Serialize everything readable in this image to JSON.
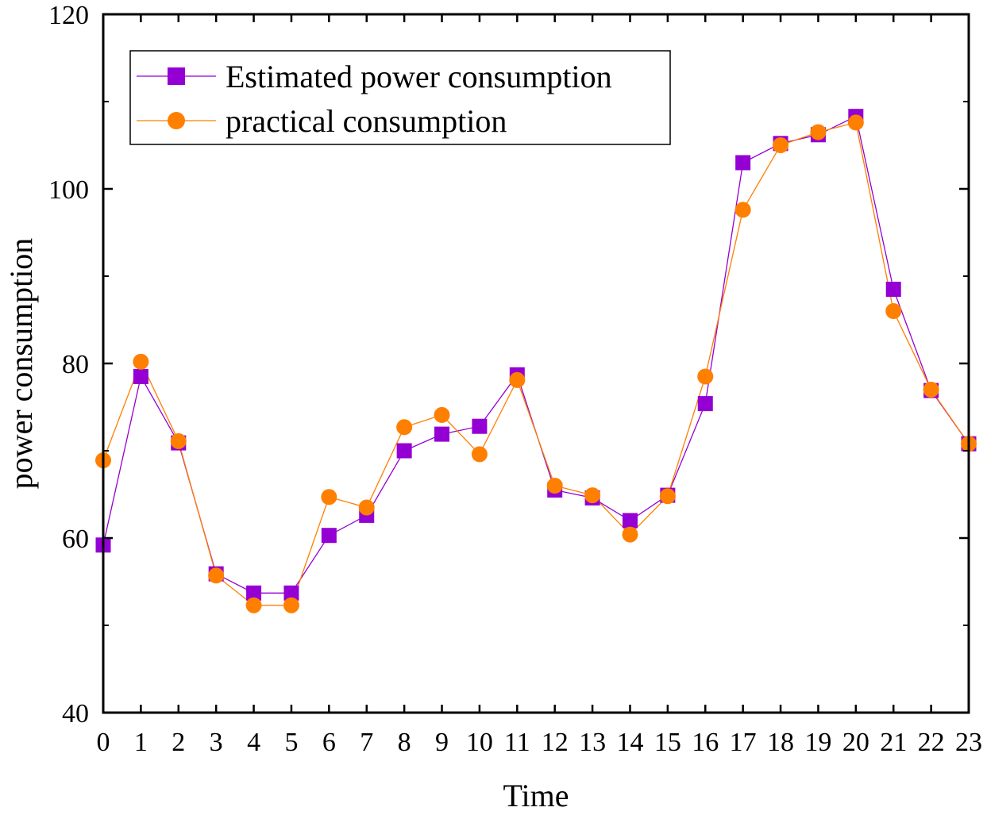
{
  "chart_data": {
    "type": "line",
    "title": "",
    "xlabel": "Time",
    "ylabel": "power consumption",
    "xlim": [
      0,
      23
    ],
    "ylim": [
      40,
      120
    ],
    "x": [
      0,
      1,
      2,
      3,
      4,
      5,
      6,
      7,
      8,
      9,
      10,
      11,
      12,
      13,
      14,
      15,
      16,
      17,
      18,
      19,
      20,
      21,
      22,
      23
    ],
    "x_ticks": [
      "0",
      "1",
      "2",
      "3",
      "4",
      "5",
      "6",
      "7",
      "8",
      "9",
      "10",
      "11",
      "12",
      "13",
      "14",
      "15",
      "16",
      "17",
      "18",
      "19",
      "20",
      "21",
      "22",
      "23"
    ],
    "y_ticks": [
      {
        "value": 40,
        "label": "40"
      },
      {
        "value": 60,
        "label": "60"
      },
      {
        "value": 80,
        "label": "80"
      },
      {
        "value": 100,
        "label": "100"
      },
      {
        "value": 120,
        "label": "120"
      }
    ],
    "y_minor_ticks": [
      50,
      70,
      90,
      110
    ],
    "grid": false,
    "legend_position": "top-left",
    "series": [
      {
        "name": "Estimated power consumption",
        "marker": "square",
        "color": "#9400D3",
        "values": [
          59.2,
          78.5,
          70.9,
          55.9,
          53.7,
          53.7,
          60.3,
          62.6,
          70.0,
          71.9,
          72.8,
          78.7,
          65.5,
          64.6,
          62.0,
          64.9,
          75.4,
          103.0,
          105.2,
          106.2,
          108.3,
          88.5,
          76.9,
          70.8
        ]
      },
      {
        "name": "practical consumption",
        "marker": "circle",
        "color": "#FF7F00",
        "values": [
          68.9,
          80.2,
          71.1,
          55.7,
          52.3,
          52.3,
          64.7,
          63.5,
          72.7,
          74.1,
          69.6,
          78.1,
          66.0,
          64.9,
          60.4,
          64.8,
          78.5,
          97.6,
          105.0,
          106.5,
          107.6,
          86.0,
          77.0,
          70.8
        ]
      }
    ]
  }
}
